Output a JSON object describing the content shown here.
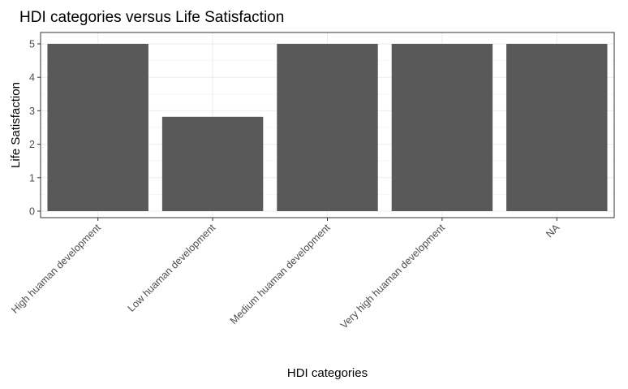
{
  "chart_data": {
    "type": "bar",
    "title": "HDI categories versus Life Satisfaction",
    "xlabel": "HDI categories",
    "ylabel": "Life Satisfaction",
    "categories": [
      "High huaman development",
      "Low huaman development",
      "Medium huaman development",
      "Very high huaman development",
      "NA"
    ],
    "values": [
      5,
      2.82,
      5,
      5,
      5
    ],
    "ylim": [
      0,
      5
    ],
    "yticks": [
      "0",
      "1",
      "2",
      "3",
      "4",
      "5"
    ],
    "grid": true,
    "bar_color": "#595959",
    "panel_border_color": "#333333"
  }
}
